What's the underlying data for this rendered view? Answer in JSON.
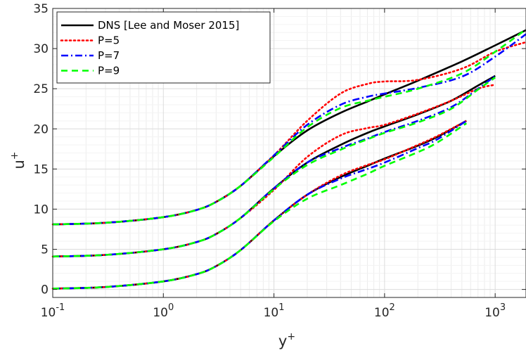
{
  "chart_data": {
    "type": "line",
    "title": "",
    "xlabel": "y+",
    "ylabel": "u+",
    "x_scale": "log",
    "xlim": [
      0.1,
      1900
    ],
    "ylim": [
      -1,
      35
    ],
    "x_ticks": [
      0.1,
      1,
      10,
      100,
      1000
    ],
    "x_tick_labels": [
      {
        "base": "10",
        "exp": "-1"
      },
      {
        "base": "10",
        "exp": "0"
      },
      {
        "base": "10",
        "exp": "1"
      },
      {
        "base": "10",
        "exp": "2"
      },
      {
        "base": "10",
        "exp": "3"
      }
    ],
    "y_ticks": [
      0,
      5,
      10,
      15,
      20,
      25,
      30,
      35
    ],
    "y_tick_labels": [
      "0",
      "5",
      "10",
      "15",
      "20",
      "25",
      "30",
      "35"
    ],
    "grid": true,
    "minor_grid": true,
    "legend_position": "top-left",
    "groups": [
      {
        "offset": 0,
        "re_tau": 550
      },
      {
        "offset": 4,
        "re_tau": 1000
      },
      {
        "offset": 8,
        "re_tau": 1900
      }
    ],
    "series": [
      {
        "name": "DNS [Lee and Moser 2015]",
        "color": "#000000",
        "dash": "solid",
        "curves": [
          {
            "x": [
              0.1,
              0.3,
              1,
              2,
              3,
              5,
              10,
              20,
              40,
              70,
              100,
              200,
              300,
              550
            ],
            "y": [
              0.1,
              0.3,
              1.0,
              1.9,
              2.9,
              4.9,
              8.6,
              11.8,
              14.0,
              15.4,
              16.3,
              17.9,
              19.0,
              21.0
            ]
          },
          {
            "x": [
              0.1,
              0.3,
              1,
              2,
              3,
              5,
              10,
              20,
              40,
              70,
              100,
              200,
              400,
              700,
              1000
            ],
            "y": [
              4.1,
              4.3,
              5.0,
              5.9,
              6.9,
              8.9,
              12.6,
              15.8,
              18.0,
              19.5,
              20.3,
              21.8,
              23.5,
              25.4,
              26.6
            ]
          },
          {
            "x": [
              0.1,
              0.3,
              1,
              2,
              3,
              5,
              10,
              20,
              40,
              70,
              100,
              200,
              500,
              1000,
              1900
            ],
            "y": [
              8.1,
              8.3,
              9.0,
              9.9,
              10.9,
              12.9,
              16.6,
              19.8,
              22.0,
              23.4,
              24.3,
              26.0,
              28.4,
              30.4,
              32.3
            ]
          }
        ]
      },
      {
        "name": "P=5",
        "color": "#ff0000",
        "dash": "dotted",
        "curves": [
          {
            "x": [
              0.1,
              0.3,
              1,
              2,
              3,
              5,
              10,
              20,
              40,
              70,
              100,
              200,
              300,
              550
            ],
            "y": [
              0.1,
              0.3,
              1.0,
              1.9,
              2.9,
              4.9,
              8.6,
              11.8,
              14.2,
              15.5,
              16.2,
              18.0,
              19.1,
              21.0
            ]
          },
          {
            "x": [
              0.1,
              0.3,
              1,
              2,
              3,
              5,
              10,
              20,
              40,
              70,
              100,
              200,
              400,
              700,
              1000
            ],
            "y": [
              4.1,
              4.3,
              5.0,
              5.9,
              6.9,
              8.9,
              12.4,
              16.5,
              19.2,
              20.1,
              20.5,
              21.9,
              23.5,
              25.0,
              25.5
            ]
          },
          {
            "x": [
              0.1,
              0.3,
              1,
              2,
              3,
              5,
              10,
              20,
              40,
              70,
              100,
              200,
              500,
              1000,
              1900
            ],
            "y": [
              8.1,
              8.3,
              9.0,
              9.9,
              10.9,
              12.9,
              16.7,
              21.0,
              24.4,
              25.6,
              25.9,
              26.1,
              27.5,
              29.6,
              30.8
            ]
          }
        ]
      },
      {
        "name": "P=7",
        "color": "#0000ff",
        "dash": "dashdot",
        "curves": [
          {
            "x": [
              0.1,
              0.3,
              1,
              2,
              3,
              5,
              10,
              20,
              40,
              70,
              100,
              200,
              300,
              550
            ],
            "y": [
              0.1,
              0.3,
              1.0,
              1.9,
              2.9,
              4.9,
              8.6,
              11.8,
              13.8,
              15.0,
              15.8,
              17.6,
              18.7,
              21.0
            ]
          },
          {
            "x": [
              0.1,
              0.3,
              1,
              2,
              3,
              5,
              10,
              20,
              40,
              70,
              100,
              200,
              400,
              700,
              1000
            ],
            "y": [
              4.1,
              4.3,
              5.0,
              5.9,
              6.9,
              8.9,
              12.6,
              15.8,
              17.6,
              18.8,
              19.6,
              21.0,
              22.7,
              25.0,
              26.6
            ]
          },
          {
            "x": [
              0.1,
              0.3,
              1,
              2,
              3,
              5,
              10,
              20,
              40,
              70,
              100,
              200,
              500,
              1000,
              1900
            ],
            "y": [
              8.1,
              8.3,
              9.0,
              9.9,
              10.9,
              12.9,
              16.7,
              20.5,
              23.0,
              24.0,
              24.4,
              25.1,
              26.5,
              29.0,
              31.8
            ]
          }
        ]
      },
      {
        "name": "P=9",
        "color": "#00ff00",
        "dash": "dashed",
        "curves": [
          {
            "x": [
              0.1,
              0.3,
              1,
              2,
              3,
              5,
              10,
              20,
              40,
              70,
              100,
              200,
              300,
              550
            ],
            "y": [
              0.1,
              0.3,
              1.0,
              1.9,
              2.9,
              4.9,
              8.5,
              11.3,
              13.0,
              14.4,
              15.4,
              17.1,
              18.3,
              20.7
            ]
          },
          {
            "x": [
              0.1,
              0.3,
              1,
              2,
              3,
              5,
              10,
              20,
              40,
              70,
              100,
              200,
              400,
              700,
              1000
            ],
            "y": [
              4.1,
              4.3,
              5.0,
              5.9,
              6.9,
              8.9,
              12.5,
              15.5,
              17.4,
              18.7,
              19.5,
              20.8,
              22.5,
              24.9,
              26.4
            ]
          },
          {
            "x": [
              0.1,
              0.3,
              1,
              2,
              3,
              5,
              10,
              20,
              40,
              70,
              100,
              200,
              500,
              1000,
              1900
            ],
            "y": [
              8.1,
              8.3,
              9.0,
              9.9,
              10.9,
              12.9,
              16.5,
              20.2,
              22.6,
              23.5,
              24.0,
              25.0,
              26.9,
              29.6,
              32.4
            ]
          }
        ]
      }
    ]
  }
}
